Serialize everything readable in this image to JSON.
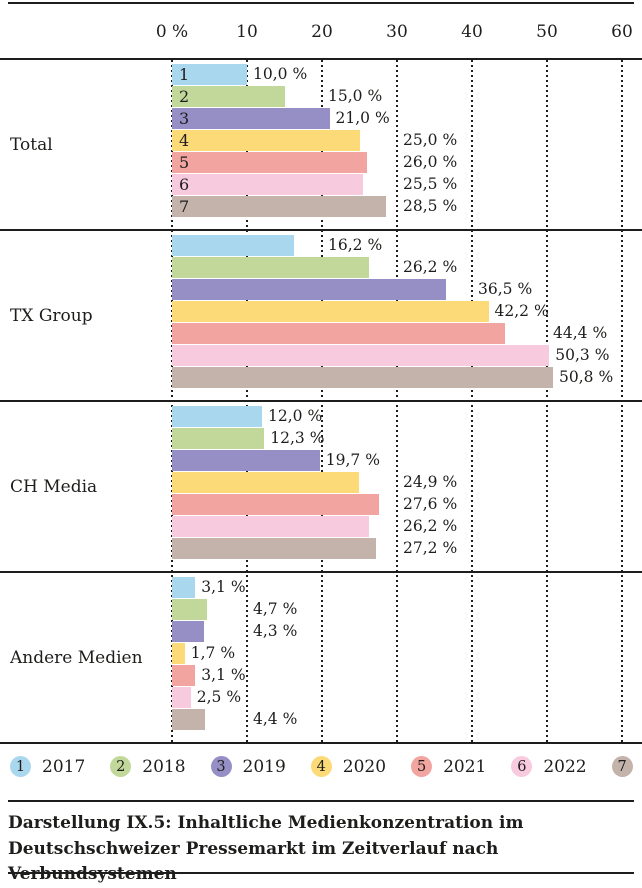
{
  "chart_data": {
    "type": "bar",
    "orientation": "horizontal",
    "title": "",
    "xlabel": "",
    "ylabel": "",
    "unit": "%",
    "axis": {
      "ticks": [
        "0 %",
        "10",
        "20",
        "30",
        "40",
        "50",
        "60"
      ],
      "tick_values": [
        0,
        10,
        20,
        30,
        40,
        50,
        60
      ],
      "min": 0,
      "max": 60,
      "gridlines": "dotted-vertical"
    },
    "categories": [
      "Total",
      "TX Group",
      "CH Media",
      "Andere Medien"
    ],
    "series": [
      {
        "num": "1",
        "name": "2017",
        "color": "#a9d8ee",
        "values": [
          10.0,
          16.2,
          12.0,
          3.1
        ],
        "display": [
          "10,0 %",
          "16,2 %",
          "12,0 %",
          "3,1 %"
        ],
        "label_snap": [
          null,
          20,
          null,
          null
        ]
      },
      {
        "num": "2",
        "name": "2018",
        "color": "#c2d89b",
        "values": [
          15.0,
          26.2,
          12.3,
          4.7
        ],
        "display": [
          "15,0 %",
          "26,2 %",
          "12,3 %",
          "4,7 %"
        ],
        "label_snap": [
          20,
          30,
          null,
          10
        ]
      },
      {
        "num": "3",
        "name": "2019",
        "color": "#968fc5",
        "values": [
          21.0,
          36.5,
          19.7,
          4.3
        ],
        "display": [
          "21,0 %",
          "36,5 %",
          "19,7 %",
          "4,3 %"
        ],
        "label_snap": [
          null,
          40,
          null,
          10
        ]
      },
      {
        "num": "4",
        "name": "2020",
        "color": "#fdda78",
        "values": [
          25.0,
          42.2,
          24.9,
          1.7
        ],
        "display": [
          "25,0 %",
          "42,2 %",
          "24,9 %",
          "1,7 %"
        ],
        "label_snap": [
          30,
          null,
          30,
          null
        ]
      },
      {
        "num": "5",
        "name": "2021",
        "color": "#f2a5a0",
        "values": [
          26.0,
          44.4,
          27.6,
          3.1
        ],
        "display": [
          "26,0 %",
          "44,4 %",
          "27,6 %",
          "3,1 %"
        ],
        "label_snap": [
          30,
          50,
          30,
          null
        ]
      },
      {
        "num": "6",
        "name": "2022",
        "color": "#f8cade",
        "values": [
          25.5,
          50.3,
          26.2,
          2.5
        ],
        "display": [
          "25,5 %",
          "50,3 %",
          "26,2 %",
          "2,5 %"
        ],
        "label_snap": [
          30,
          null,
          30,
          null
        ]
      },
      {
        "num": "7",
        "name": "2023",
        "color": "#c4b3ab",
        "values": [
          28.5,
          50.8,
          27.2,
          4.4
        ],
        "display": [
          "28,5 %",
          "50,8 %",
          "27,2 %",
          "4,4 %"
        ],
        "label_snap": [
          30,
          null,
          30,
          10
        ]
      }
    ],
    "series_numbers_shown_inside_first_group": true,
    "legend_position": "bottom",
    "text_color": "#1d1d1b"
  },
  "caption": {
    "text": "Darstellung IX.5: Inhaltliche Medienkonzentration im Deutschschweizer Pressemarkt im Zeitverlauf nach Verbundsystemen"
  }
}
